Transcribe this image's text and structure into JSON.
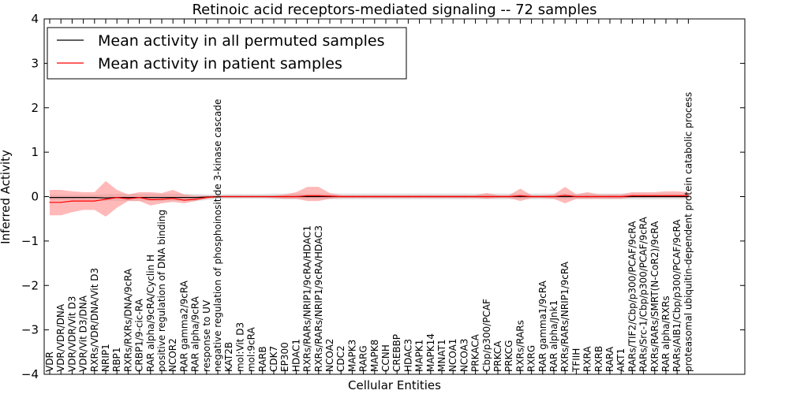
{
  "chart_data": {
    "type": "line",
    "title": "Retinoic acid receptors-mediated signaling -- 72 samples",
    "xlabel": "Cellular Entities",
    "ylabel": "Inferred Activity",
    "ylim": [
      -4,
      4
    ],
    "yticks": [
      -4,
      -3,
      -2,
      -1,
      0,
      1,
      2,
      3,
      4
    ],
    "ytick_labels": [
      "−4",
      "−3",
      "−2",
      "−1",
      "0",
      "1",
      "2",
      "3",
      "4"
    ],
    "grid": false,
    "legend_position": "top-left",
    "categories": [
      "VDR",
      "VDR/VDR/DNA",
      "VDR/VDR/Vit D3",
      "VDR/Vit D3/DNA",
      "RXRs/VDR/DNA/Vit D3",
      "NRIP1",
      "RBP1",
      "RXRs/RXRs/DNA/9cRA",
      "CRBP1/9-cic-RA",
      "RAR alpha/9cRA/Cyclin H",
      "positive regulation of DNA binding",
      "NCOR2",
      "RAR gamma2/9cRA",
      "RAR alpha/9cRA",
      "response to UV",
      "negative regulation of phosphoinositide 3-kinase cascade",
      "KAT2B",
      "mol:Vit D3",
      "mol:9cRA",
      "RARB",
      "CDK7",
      "EP300",
      "HDAC1",
      "RXRs/RARs/NRIP1/9cRA/HDAC1",
      "RXRs/RARs/NRIP1/9cRA/HDAC3",
      "NCOA2",
      "CDC2",
      "MAPK3",
      "RARG",
      "MAPK8",
      "CCNH",
      "CREBBP",
      "HDAC3",
      "MAPK1",
      "MAPK14",
      "MNAT1",
      "NCOA1",
      "NCOA3",
      "PRKACA",
      "Cbp/p300/PCAF",
      "PRKCA",
      "PRKCG",
      "RXRs/RARs",
      "RXRG",
      "RAR gamma1/9cRA",
      "RAR alpha/Jnk1",
      "RXRs/RARs/NRIP1/9cRA",
      "TFIIH",
      "RXRA",
      "RXRB",
      "RARA",
      "AKT1",
      "RARs/TIF2/Cbp/p300/PCAF/9cRA",
      "RARs/Src-1/Cbp/p300/PCAF/9cRA",
      "RXRs/RARs/SMRT(N-CoR2)/9cRA",
      "RAR alpha/RXRs",
      "RARs/AIB1/Cbp/p300/PCAF/9cRA",
      "proteasomal ubiquitin-dependent protein catabolic process"
    ],
    "series": [
      {
        "name": "Mean activity in all permuted samples",
        "color": "#000000",
        "values": [
          -0.02,
          -0.02,
          -0.02,
          -0.02,
          -0.02,
          -0.03,
          -0.02,
          -0.02,
          -0.02,
          -0.02,
          -0.02,
          -0.02,
          -0.02,
          -0.02,
          -0.01,
          0,
          0,
          0,
          0,
          0,
          0,
          0,
          0,
          0,
          0,
          0,
          0,
          0,
          0,
          0,
          0,
          0,
          0,
          0,
          0,
          0,
          0,
          0,
          0,
          0,
          0,
          0,
          0,
          0,
          0,
          0,
          0,
          0,
          0,
          0,
          0,
          0,
          0,
          0,
          0,
          0,
          0,
          0
        ],
        "band_low": [
          -0.08,
          -0.08,
          -0.08,
          -0.08,
          -0.08,
          -0.1,
          -0.1,
          -0.1,
          -0.1,
          -0.1,
          -0.1,
          -0.1,
          -0.1,
          -0.1,
          -0.08,
          -0.05,
          -0.05,
          -0.05,
          -0.05,
          -0.05,
          -0.06,
          -0.06,
          -0.06,
          -0.06,
          -0.06,
          -0.06,
          -0.06,
          -0.06,
          -0.06,
          -0.06,
          -0.06,
          -0.06,
          -0.06,
          -0.06,
          -0.06,
          -0.06,
          -0.06,
          -0.06,
          -0.06,
          -0.06,
          -0.06,
          -0.06,
          -0.06,
          -0.06,
          -0.06,
          -0.06,
          -0.06,
          -0.06,
          -0.06,
          -0.06,
          -0.06,
          -0.06,
          -0.06,
          -0.06,
          -0.06,
          -0.06,
          -0.06,
          -0.06
        ],
        "band_high": [
          0.04,
          0.04,
          0.04,
          0.04,
          0.04,
          0.06,
          0.06,
          0.06,
          0.06,
          0.06,
          0.06,
          0.06,
          0.06,
          0.06,
          0.05,
          0.05,
          0.06,
          0.06,
          0.06,
          0.06,
          0.07,
          0.07,
          0.07,
          0.07,
          0.07,
          0.07,
          0.07,
          0.07,
          0.07,
          0.07,
          0.07,
          0.07,
          0.07,
          0.07,
          0.07,
          0.07,
          0.07,
          0.07,
          0.07,
          0.07,
          0.07,
          0.07,
          0.07,
          0.07,
          0.07,
          0.07,
          0.07,
          0.07,
          0.07,
          0.07,
          0.07,
          0.07,
          0.07,
          0.07,
          0.07,
          0.07,
          0.07,
          0.07
        ]
      },
      {
        "name": "Mean activity in patient samples",
        "color": "#ff0000",
        "fill_color": "#ff8080",
        "values": [
          -0.13,
          -0.13,
          -0.1,
          -0.1,
          -0.1,
          -0.06,
          -0.02,
          -0.05,
          -0.02,
          -0.07,
          -0.06,
          -0.04,
          -0.08,
          -0.06,
          -0.02,
          0,
          0,
          0,
          0,
          0,
          0,
          0,
          0,
          0.02,
          0.02,
          0.01,
          0,
          0,
          0,
          0,
          0,
          0,
          0,
          0,
          0,
          0,
          0,
          0,
          0,
          0,
          0,
          0,
          0.02,
          0,
          0,
          0,
          0.03,
          0,
          0,
          0,
          0,
          0,
          0.02,
          0.02,
          0.02,
          0.02,
          0.02,
          0.02
        ],
        "band_low": [
          -0.42,
          -0.42,
          -0.35,
          -0.3,
          -0.3,
          -0.45,
          -0.25,
          -0.1,
          -0.1,
          -0.2,
          -0.15,
          -0.12,
          -0.15,
          -0.1,
          -0.05,
          -0.02,
          -0.02,
          -0.02,
          -0.02,
          -0.02,
          -0.03,
          -0.05,
          -0.05,
          -0.1,
          -0.1,
          -0.05,
          -0.03,
          -0.03,
          -0.03,
          -0.03,
          -0.03,
          -0.03,
          -0.03,
          -0.03,
          -0.03,
          -0.03,
          -0.03,
          -0.03,
          -0.03,
          -0.05,
          -0.03,
          -0.03,
          -0.1,
          -0.03,
          -0.03,
          -0.05,
          -0.15,
          -0.05,
          -0.05,
          -0.05,
          -0.05,
          -0.05,
          -0.02,
          -0.02,
          -0.02,
          -0.02,
          -0.02,
          -0.02
        ],
        "band_high": [
          0.15,
          0.15,
          0.12,
          0.1,
          0.1,
          0.35,
          0.15,
          0.05,
          0.1,
          0.1,
          0.08,
          0.15,
          0.05,
          0.02,
          0.02,
          0.02,
          0.02,
          0.02,
          0.02,
          0.02,
          0.02,
          0.05,
          0.1,
          0.22,
          0.22,
          0.08,
          0.03,
          0.03,
          0.03,
          0.03,
          0.03,
          0.03,
          0.03,
          0.03,
          0.03,
          0.03,
          0.03,
          0.03,
          0.03,
          0.08,
          0.03,
          0.03,
          0.18,
          0.03,
          0.03,
          0.05,
          0.22,
          0.05,
          0.1,
          0.05,
          0.05,
          0.05,
          0.1,
          0.1,
          0.1,
          0.12,
          0.12,
          0.1
        ]
      }
    ]
  }
}
